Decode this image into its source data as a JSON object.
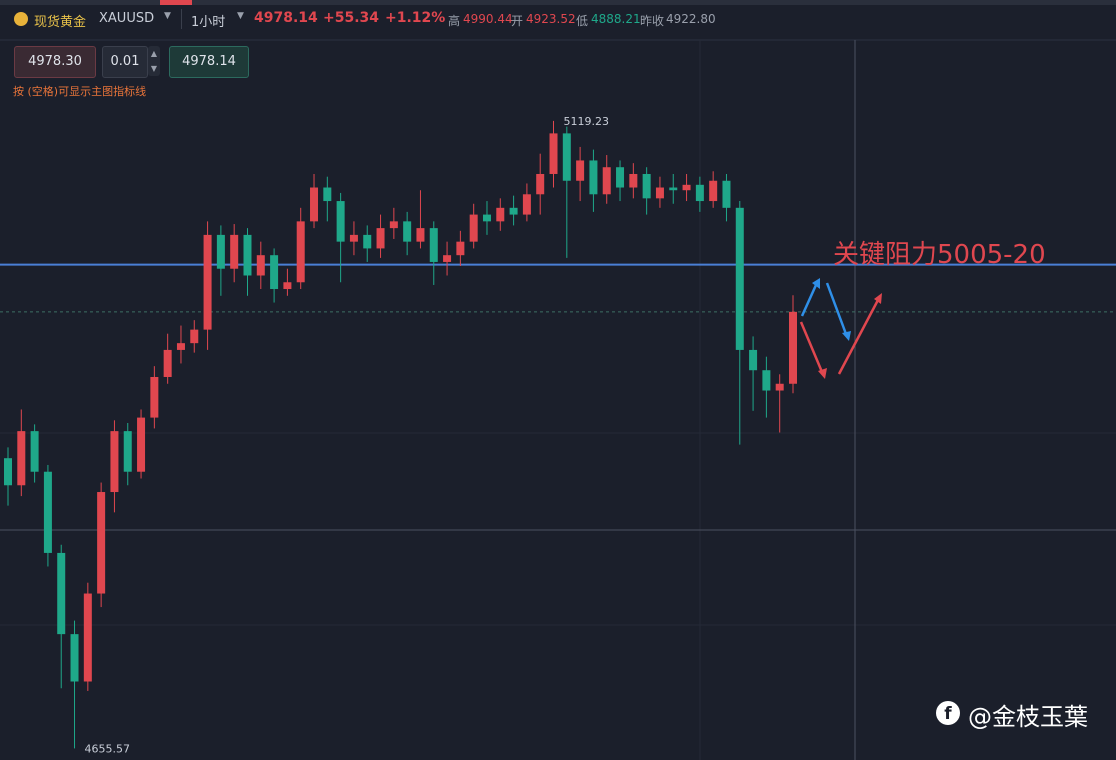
{
  "header": {
    "symbol_name": "现货黄金",
    "symbol_code": "XAUUSD",
    "period": "1小时",
    "price": "4978.14",
    "change": "+55.34",
    "change_pct": "+1.12%",
    "high_label": "高",
    "high": "4990.44",
    "open_label": "开",
    "open": "4923.52",
    "low_label": "低",
    "low": "4888.21",
    "prev_close_label": "昨收",
    "prev_close": "4922.80"
  },
  "order_panel": {
    "sell_price": "4978.30",
    "lots": "0.01",
    "buy_price": "4978.14"
  },
  "hint": "按 (空格)可显示主图指标线",
  "watermark": "@金枝玉葉",
  "chart_data": {
    "type": "candlestick",
    "ylim": [
      4647,
      5179
    ],
    "up_color": "#e0474f",
    "down_color": "#1fa88a",
    "open": [
      4870,
      4850,
      4890,
      4860,
      4800,
      4740,
      4705,
      4770,
      4845,
      4890,
      4860,
      4900,
      4930,
      4950,
      4955,
      4965,
      5035,
      5010,
      5035,
      5005,
      5020,
      4995,
      5000,
      5045,
      5070,
      5060,
      5030,
      5035,
      5025,
      5040,
      5045,
      5030,
      5040,
      5015,
      5020,
      5030,
      5050,
      5045,
      5055,
      5050,
      5065,
      5080,
      5110,
      5075,
      5090,
      5065,
      5085,
      5070,
      5080,
      5062,
      5070,
      5068,
      5072,
      5060,
      5075,
      5055,
      4950,
      4935,
      4920,
      4925
    ],
    "high": [
      4878,
      4906,
      4895,
      4865,
      4806,
      4750,
      4778,
      4852,
      4898,
      4896,
      4906,
      4938,
      4962,
      4968,
      4972,
      5045,
      5042,
      5043,
      5040,
      5030,
      5025,
      5010,
      5055,
      5080,
      5078,
      5066,
      5045,
      5042,
      5050,
      5055,
      5052,
      5068,
      5045,
      5030,
      5038,
      5058,
      5060,
      5062,
      5064,
      5073,
      5095,
      5119.23,
      5115,
      5100,
      5098,
      5094,
      5090,
      5088,
      5085,
      5078,
      5080,
      5080,
      5078,
      5082,
      5080,
      5060,
      4960,
      4945,
      4932,
      4990.44
    ],
    "low": [
      4835,
      4842,
      4852,
      4790,
      4700,
      4655.57,
      4698,
      4760,
      4830,
      4850,
      4855,
      4892,
      4925,
      4940,
      4948,
      4950,
      4990,
      5000,
      4990,
      4995,
      4985,
      4990,
      4995,
      5040,
      5045,
      5000,
      5020,
      5015,
      5018,
      5032,
      5020,
      5025,
      4998,
      5005,
      5012,
      5025,
      5035,
      5038,
      5042,
      5045,
      5050,
      5070,
      5018,
      5060,
      5052,
      5058,
      5060,
      5062,
      5050,
      5055,
      5058,
      5060,
      5052,
      5055,
      5045,
      4880,
      4905,
      4900,
      4889,
      4918
    ],
    "close": [
      4850,
      4890,
      4860,
      4800,
      4740,
      4705,
      4770,
      4845,
      4890,
      4860,
      4900,
      4930,
      4950,
      4955,
      4965,
      5035,
      5010,
      5035,
      5005,
      5020,
      4995,
      5000,
      5045,
      5070,
      5060,
      5030,
      5035,
      5025,
      5040,
      5045,
      5030,
      5040,
      5015,
      5020,
      5030,
      5050,
      5045,
      5055,
      5050,
      5065,
      5080,
      5110,
      5075,
      5090,
      5065,
      5085,
      5070,
      5080,
      5062,
      5070,
      5068,
      5072,
      5060,
      5075,
      5055,
      4950,
      4935,
      4920,
      4925,
      4978.14
    ],
    "max_index": 41,
    "min_index": 5,
    "resistance_line": {
      "value": 5013,
      "color": "#4a7fd6"
    },
    "current_price_line": 4978.14,
    "annotation": "关键阻力5005-20"
  }
}
